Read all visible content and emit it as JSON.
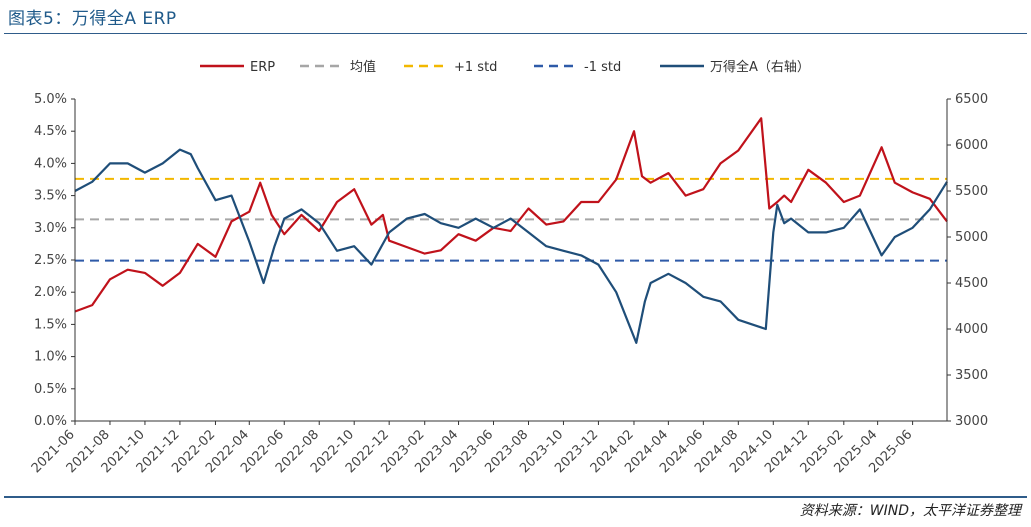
{
  "header": {
    "title": "图表5：万得全A ERP"
  },
  "footer": {
    "source": "资料来源：WIND，太平洋证券整理"
  },
  "chart_data": {
    "type": "line",
    "legend_placement": "top",
    "left_axis": {
      "ticks": [
        "5.0%",
        "4.5%",
        "4.0%",
        "3.5%",
        "3.0%",
        "2.5%",
        "2.0%",
        "1.5%",
        "1.0%",
        "0.5%",
        "0.0%"
      ],
      "ylim": [
        0,
        5.0
      ]
    },
    "right_axis": {
      "ticks": [
        "6500",
        "6000",
        "5500",
        "5000",
        "4500",
        "4000",
        "3500",
        "3000"
      ],
      "ylim": [
        3000,
        6500
      ]
    },
    "x_ticks": [
      "2021-06",
      "2021-08",
      "2021-10",
      "2021-12",
      "2022-02",
      "2022-04",
      "2022-06",
      "2022-08",
      "2022-10",
      "2022-12",
      "2023-02",
      "2023-04",
      "2023-06",
      "2023-08",
      "2023-10",
      "2023-12",
      "2024-02",
      "2024-04",
      "2024-06",
      "2024-08",
      "2024-10",
      "2024-12",
      "2025-02",
      "2025-04",
      "2025-06"
    ],
    "x_range": [
      "2021-06-01",
      "2025-07-31"
    ],
    "colors": {
      "erp": "#c0121b",
      "mean": "#a6a6a6",
      "plus": "#f2b800",
      "minus": "#2e5aa8",
      "index": "#1f4e79"
    },
    "series": [
      {
        "name": "ERP",
        "axis": "left",
        "x": [
          "2021-06-01",
          "2021-07-01",
          "2021-08-01",
          "2021-09-01",
          "2021-10-01",
          "2021-11-01",
          "2021-12-01",
          "2022-01-01",
          "2022-02-01",
          "2022-03-01",
          "2022-04-01",
          "2022-04-20",
          "2022-05-10",
          "2022-06-01",
          "2022-07-01",
          "2022-08-01",
          "2022-09-01",
          "2022-10-01",
          "2022-10-31",
          "2022-11-20",
          "2022-12-01",
          "2023-01-01",
          "2023-02-01",
          "2023-03-01",
          "2023-04-01",
          "2023-05-01",
          "2023-06-01",
          "2023-07-01",
          "2023-08-01",
          "2023-09-01",
          "2023-10-01",
          "2023-11-01",
          "2023-12-01",
          "2024-01-01",
          "2024-02-01",
          "2024-02-15",
          "2024-03-01",
          "2024-04-01",
          "2024-05-01",
          "2024-06-01",
          "2024-07-01",
          "2024-08-01",
          "2024-09-10",
          "2024-09-24",
          "2024-10-08",
          "2024-10-20",
          "2024-11-01",
          "2024-12-01",
          "2025-01-01",
          "2025-02-01",
          "2025-03-01",
          "2025-04-08",
          "2025-05-01",
          "2025-06-01",
          "2025-07-01",
          "2025-07-31"
        ],
        "values": [
          1.7,
          1.8,
          2.2,
          2.35,
          2.3,
          2.1,
          2.3,
          2.75,
          2.55,
          3.1,
          3.25,
          3.7,
          3.2,
          2.9,
          3.2,
          2.95,
          3.4,
          3.6,
          3.05,
          3.2,
          2.8,
          2.7,
          2.6,
          2.65,
          2.9,
          2.8,
          3.0,
          2.95,
          3.3,
          3.05,
          3.1,
          3.4,
          3.4,
          3.75,
          4.5,
          3.8,
          3.7,
          3.85,
          3.5,
          3.6,
          4.0,
          4.2,
          4.7,
          3.3,
          3.4,
          3.5,
          3.4,
          3.9,
          3.7,
          3.4,
          3.5,
          4.25,
          3.7,
          3.55,
          3.45,
          3.1
        ]
      },
      {
        "name": "均值",
        "axis": "left",
        "x": [
          "2021-06-01",
          "2025-07-31"
        ],
        "values": [
          3.13,
          3.13
        ]
      },
      {
        "name": "+1 std",
        "axis": "left",
        "x": [
          "2021-06-01",
          "2025-07-31"
        ],
        "values": [
          3.76,
          3.76
        ]
      },
      {
        "name": "-1 std",
        "axis": "left",
        "x": [
          "2021-06-01",
          "2025-07-31"
        ],
        "values": [
          2.49,
          2.49
        ]
      },
      {
        "name": "万得全A（右轴）",
        "axis": "right",
        "x": [
          "2021-06-01",
          "2021-07-01",
          "2021-08-01",
          "2021-09-01",
          "2021-10-01",
          "2021-11-01",
          "2021-12-01",
          "2021-12-20",
          "2022-01-01",
          "2022-02-01",
          "2022-03-01",
          "2022-04-01",
          "2022-04-26",
          "2022-05-15",
          "2022-06-01",
          "2022-07-01",
          "2022-08-01",
          "2022-09-01",
          "2022-10-01",
          "2022-10-31",
          "2022-12-01",
          "2023-01-01",
          "2023-02-01",
          "2023-03-01",
          "2023-04-01",
          "2023-05-01",
          "2023-06-01",
          "2023-07-01",
          "2023-08-01",
          "2023-09-01",
          "2023-10-01",
          "2023-11-01",
          "2023-12-01",
          "2024-01-01",
          "2024-02-05",
          "2024-02-20",
          "2024-03-01",
          "2024-04-01",
          "2024-05-01",
          "2024-06-01",
          "2024-07-01",
          "2024-08-01",
          "2024-09-18",
          "2024-10-01",
          "2024-10-08",
          "2024-10-20",
          "2024-11-01",
          "2024-12-01",
          "2025-01-01",
          "2025-02-01",
          "2025-03-01",
          "2025-04-08",
          "2025-05-01",
          "2025-06-01",
          "2025-07-01",
          "2025-07-31"
        ],
        "values": [
          5500,
          5600,
          5800,
          5800,
          5700,
          5800,
          5950,
          5900,
          5750,
          5400,
          5450,
          4950,
          4500,
          4900,
          5200,
          5300,
          5150,
          4850,
          4900,
          4700,
          5050,
          5200,
          5250,
          5150,
          5100,
          5200,
          5100,
          5200,
          5050,
          4900,
          4850,
          4800,
          4700,
          4400,
          3850,
          4300,
          4500,
          4600,
          4500,
          4350,
          4300,
          4100,
          4000,
          5050,
          5350,
          5150,
          5200,
          5050,
          5050,
          5100,
          5300,
          4800,
          5000,
          5100,
          5300,
          5600
        ]
      }
    ]
  }
}
